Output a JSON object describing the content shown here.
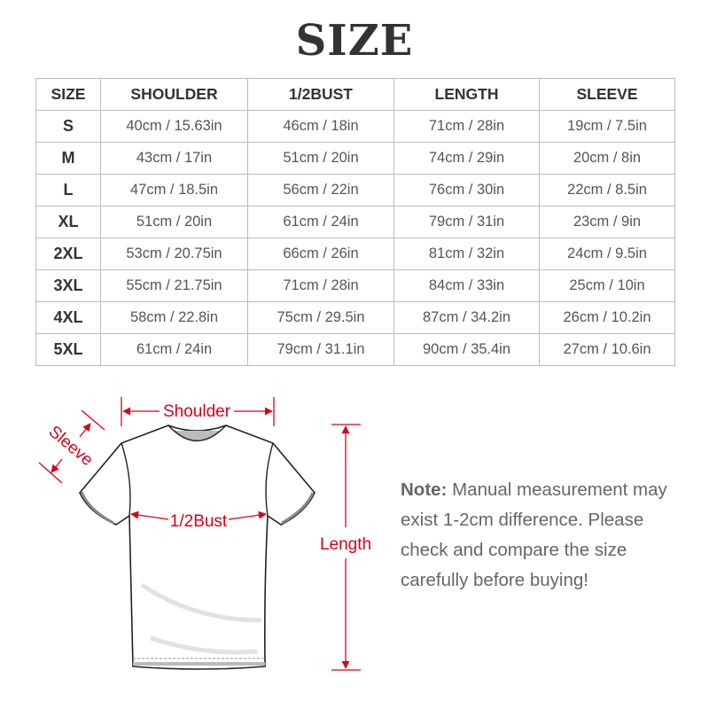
{
  "title": "SIZE",
  "table": {
    "headers": [
      "SIZE",
      "SHOULDER",
      "1/2BUST",
      "LENGTH",
      "SLEEVE"
    ],
    "rows": [
      [
        "S",
        "40cm / 15.63in",
        "46cm / 18in",
        "71cm / 28in",
        "19cm / 7.5in"
      ],
      [
        "M",
        "43cm / 17in",
        "51cm / 20in",
        "74cm / 29in",
        "20cm / 8in"
      ],
      [
        "L",
        "47cm / 18.5in",
        "56cm / 22in",
        "76cm / 30in",
        "22cm / 8.5in"
      ],
      [
        "XL",
        "51cm / 20in",
        "61cm / 24in",
        "79cm / 31in",
        "23cm / 9in"
      ],
      [
        "2XL",
        "53cm / 20.75in",
        "66cm / 26in",
        "81cm / 32in",
        "24cm / 9.5in"
      ],
      [
        "3XL",
        "55cm / 21.75in",
        "71cm / 28in",
        "84cm / 33in",
        "25cm / 10in"
      ],
      [
        "4XL",
        "58cm / 22.8in",
        "75cm / 29.5in",
        "87cm / 34.2in",
        "26cm / 10.2in"
      ],
      [
        "5XL",
        "61cm / 24in",
        "79cm / 31.1in",
        "90cm / 35.4in",
        "27cm / 10.6in"
      ]
    ]
  },
  "diagram": {
    "shoulder_label": "Shoulder",
    "sleeve_label": "Sleeve",
    "bust_label": "1/2Bust",
    "length_label": "Length",
    "accent_color": "#d9001b"
  },
  "note": {
    "label": "Note:",
    "text": "Manual measurement may exist 1-2cm difference. Please check and compare the size carefully before buying!"
  }
}
